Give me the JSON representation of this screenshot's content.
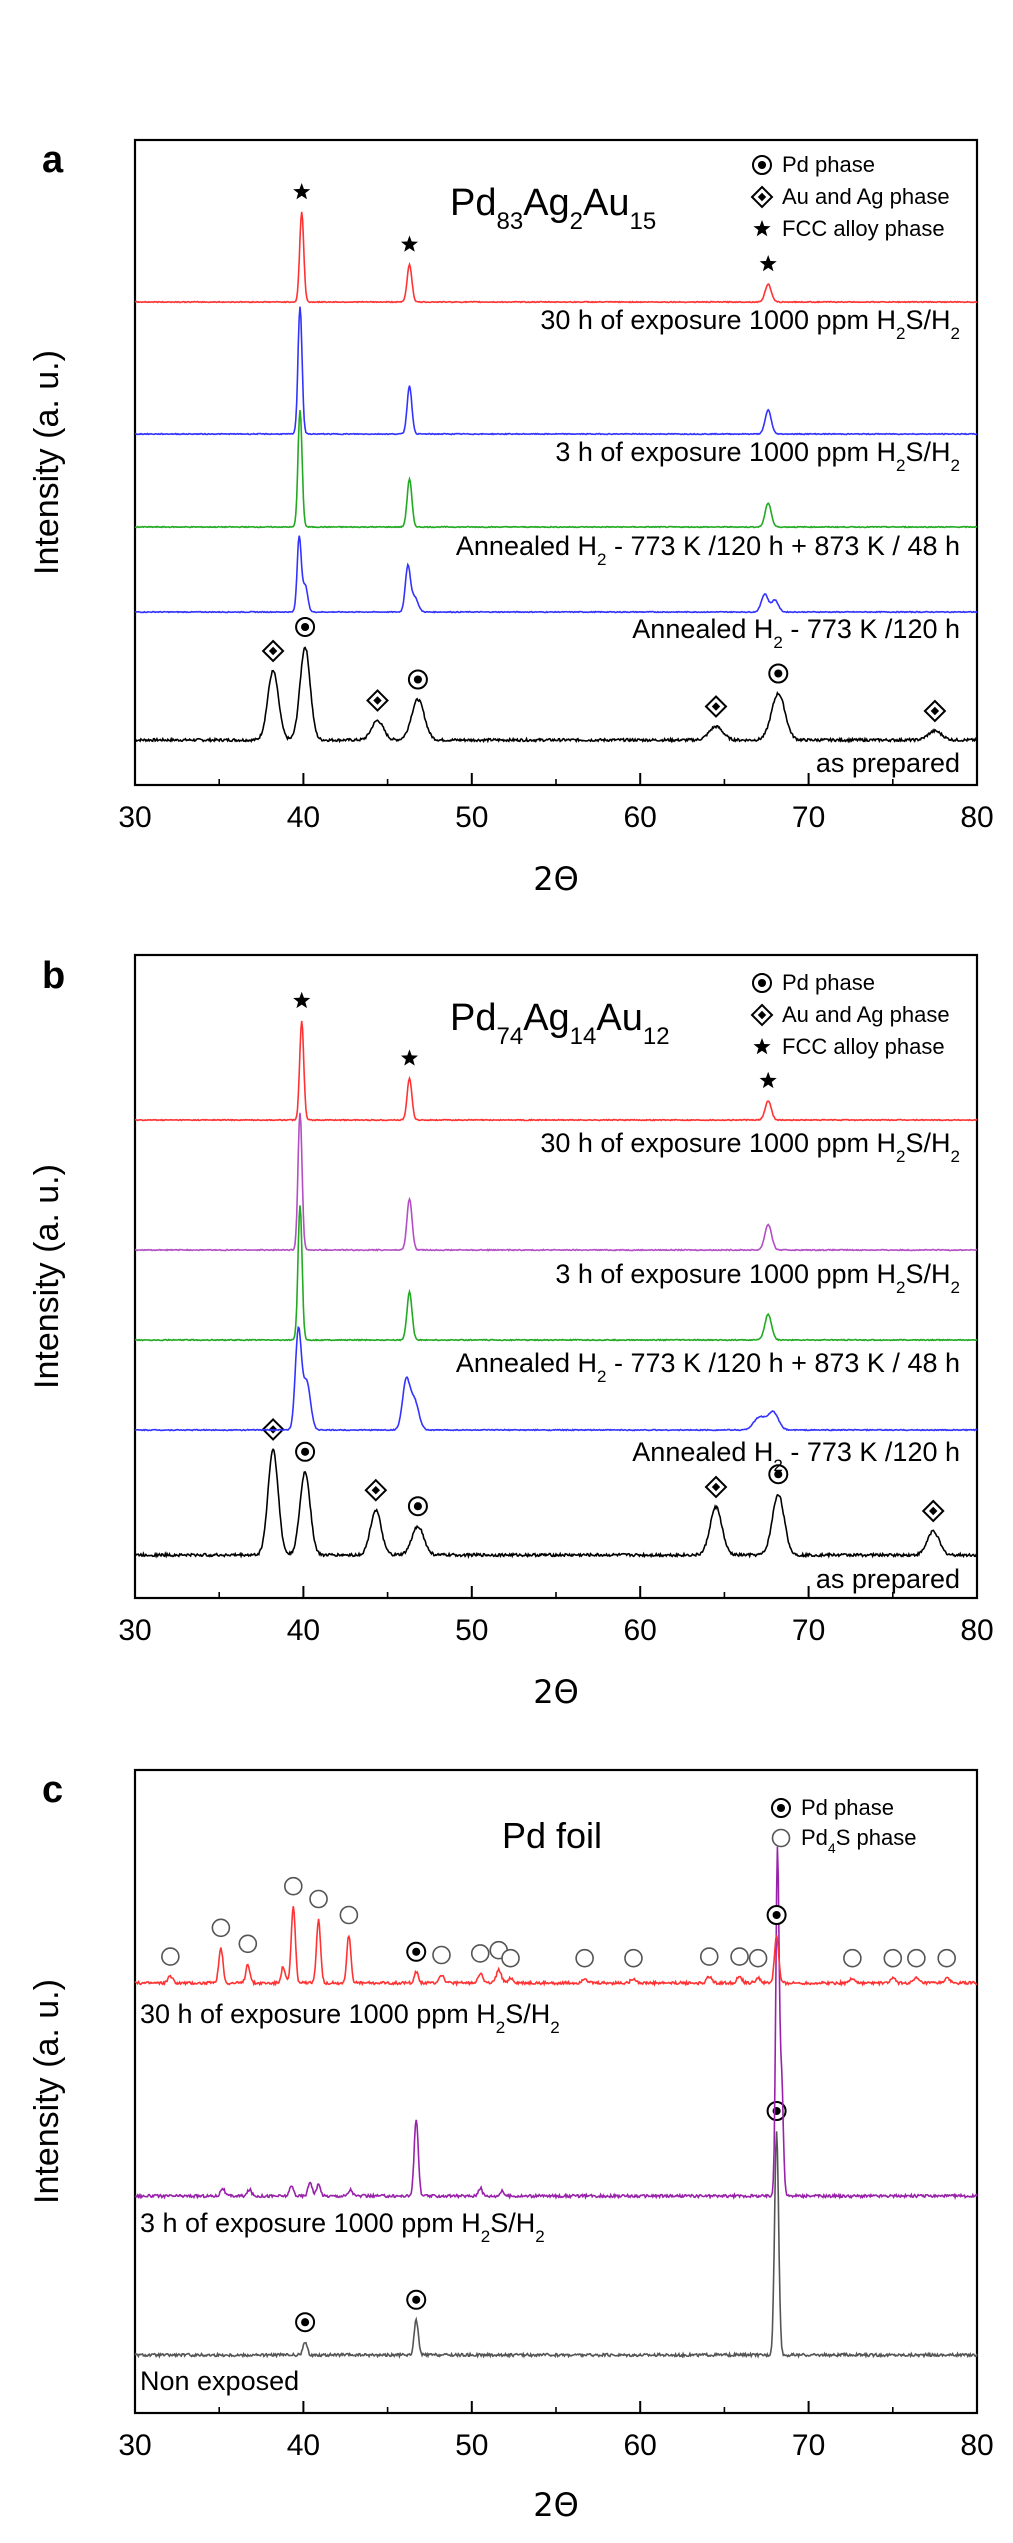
{
  "chart_data": [
    {
      "panel": "a",
      "type": "line",
      "title_parts": {
        "base": "Pd",
        "sub1": "83",
        "el2": "Ag",
        "sub2": "2",
        "el3": "Au",
        "sub3": "15"
      },
      "xlabel": "2Θ",
      "ylabel": "Intensity (a. u.)",
      "xlim": [
        30,
        80
      ],
      "xticks": [
        30,
        40,
        50,
        60,
        70,
        80
      ],
      "grid": false,
      "legend": [
        {
          "marker": "circle-dot",
          "label": "Pd phase"
        },
        {
          "marker": "diamond-dot",
          "label": "Au and Ag phase"
        },
        {
          "marker": "star",
          "label": "FCC alloy phase"
        }
      ],
      "series": [
        {
          "name": "as prepared",
          "color": "#000000",
          "label_parts": [
            "as prepared"
          ],
          "peaks": [
            {
              "x": 38.2,
              "h": 0.46,
              "w": 0.32,
              "marker": "diamond"
            },
            {
              "x": 40.1,
              "h": 0.62,
              "w": 0.3,
              "marker": "circle"
            },
            {
              "x": 44.4,
              "h": 0.13,
              "w": 0.35,
              "marker": "diamond"
            },
            {
              "x": 46.8,
              "h": 0.27,
              "w": 0.38,
              "marker": "circle"
            },
            {
              "x": 64.5,
              "h": 0.09,
              "w": 0.4,
              "marker": "diamond"
            },
            {
              "x": 68.2,
              "h": 0.31,
              "w": 0.4,
              "marker": "circle"
            },
            {
              "x": 77.5,
              "h": 0.06,
              "w": 0.4,
              "marker": "diamond"
            }
          ]
        },
        {
          "name": "Annealed H2 - 773 K /120 h",
          "color": "#3333ff",
          "label_parts": [
            "Annealed H",
            "2",
            " - 773 K /120 h"
          ],
          "peaks": [
            {
              "x": 39.75,
              "h": 0.5,
              "w": 0.12
            },
            {
              "x": 40.1,
              "h": 0.18,
              "w": 0.15
            },
            {
              "x": 46.2,
              "h": 0.3,
              "w": 0.15
            },
            {
              "x": 46.6,
              "h": 0.1,
              "w": 0.2
            },
            {
              "x": 67.4,
              "h": 0.12,
              "w": 0.2
            },
            {
              "x": 68.0,
              "h": 0.08,
              "w": 0.2
            }
          ]
        },
        {
          "name": "Annealed H2 - 773 K /120 h + 873 K / 48 h",
          "color": "#22aa22",
          "label_parts": [
            "Annealed H",
            "2",
            " - 773 K /120 h + 873 K / 48 h"
          ],
          "peaks": [
            {
              "x": 39.8,
              "h": 0.78,
              "w": 0.12
            },
            {
              "x": 46.3,
              "h": 0.32,
              "w": 0.14
            },
            {
              "x": 67.6,
              "h": 0.16,
              "w": 0.18
            }
          ]
        },
        {
          "name": "3 h of exposure 1000 ppm H2S/H2",
          "color": "#3333ff",
          "label_parts": [
            "3 h of exposure 1000 ppm H",
            "2",
            "S/H",
            "2"
          ],
          "peaks": [
            {
              "x": 39.8,
              "h": 0.85,
              "w": 0.12
            },
            {
              "x": 46.3,
              "h": 0.32,
              "w": 0.14
            },
            {
              "x": 67.6,
              "h": 0.16,
              "w": 0.18
            }
          ]
        },
        {
          "name": "30 h of exposure 1000 ppm H2S/H2",
          "color": "#ff3333",
          "label_parts": [
            "30 h of exposure 1000 ppm H",
            "2",
            "S/H",
            "2"
          ],
          "peaks": [
            {
              "x": 39.9,
              "h": 0.6,
              "w": 0.12,
              "marker": "star"
            },
            {
              "x": 46.3,
              "h": 0.25,
              "w": 0.14,
              "marker": "star"
            },
            {
              "x": 67.6,
              "h": 0.12,
              "w": 0.18,
              "marker": "star"
            }
          ]
        }
      ]
    },
    {
      "panel": "b",
      "type": "line",
      "title_parts": {
        "base": "Pd",
        "sub1": "74",
        "el2": "Ag",
        "sub2": "14",
        "el3": "Au",
        "sub3": "12"
      },
      "xlabel": "2Θ",
      "ylabel": "Intensity (a. u.)",
      "xlim": [
        30,
        80
      ],
      "xticks": [
        30,
        40,
        50,
        60,
        70,
        80
      ],
      "grid": false,
      "legend": [
        {
          "marker": "circle-dot",
          "label": "Pd phase"
        },
        {
          "marker": "diamond-dot",
          "label": "Au and Ag phase"
        },
        {
          "marker": "star",
          "label": "FCC alloy phase"
        }
      ],
      "series": [
        {
          "name": "as prepared",
          "color": "#000000",
          "label_parts": [
            "as prepared"
          ],
          "peaks": [
            {
              "x": 38.2,
              "h": 0.66,
              "w": 0.3,
              "marker": "diamond"
            },
            {
              "x": 40.1,
              "h": 0.52,
              "w": 0.3,
              "marker": "circle"
            },
            {
              "x": 44.3,
              "h": 0.28,
              "w": 0.32,
              "marker": "diamond"
            },
            {
              "x": 46.8,
              "h": 0.18,
              "w": 0.35,
              "marker": "circle"
            },
            {
              "x": 64.5,
              "h": 0.3,
              "w": 0.35,
              "marker": "diamond"
            },
            {
              "x": 68.2,
              "h": 0.38,
              "w": 0.35,
              "marker": "circle"
            },
            {
              "x": 77.4,
              "h": 0.15,
              "w": 0.35,
              "marker": "diamond"
            }
          ]
        },
        {
          "name": "Annealed H2 - 773 K /120 h",
          "color": "#3333ff",
          "label_parts": [
            "Annealed H",
            "2",
            " - 773 K /120 h"
          ],
          "peaks": [
            {
              "x": 39.7,
              "h": 0.62,
              "w": 0.18
            },
            {
              "x": 40.2,
              "h": 0.3,
              "w": 0.22
            },
            {
              "x": 46.1,
              "h": 0.3,
              "w": 0.22
            },
            {
              "x": 46.6,
              "h": 0.18,
              "w": 0.25
            },
            {
              "x": 67.1,
              "h": 0.08,
              "w": 0.35
            },
            {
              "x": 67.9,
              "h": 0.11,
              "w": 0.3
            }
          ]
        },
        {
          "name": "Annealed H2 - 773 K /120 h + 873 K / 48 h",
          "color": "#22aa22",
          "label_parts": [
            "Annealed H",
            "2",
            " - 773 K /120 h + 873 K / 48 h"
          ],
          "peaks": [
            {
              "x": 39.8,
              "h": 0.84,
              "w": 0.12
            },
            {
              "x": 46.3,
              "h": 0.3,
              "w": 0.15
            },
            {
              "x": 67.6,
              "h": 0.16,
              "w": 0.2
            }
          ]
        },
        {
          "name": "3 h of exposure 1000 ppm H2S/H2",
          "color": "#b34fc4",
          "label_parts": [
            "3 h of exposure 1000 ppm H",
            "2",
            "S/H",
            "2"
          ],
          "peaks": [
            {
              "x": 39.8,
              "h": 0.86,
              "w": 0.12
            },
            {
              "x": 46.3,
              "h": 0.32,
              "w": 0.15
            },
            {
              "x": 67.6,
              "h": 0.16,
              "w": 0.2
            }
          ]
        },
        {
          "name": "30 h of exposure 1000 ppm H2S/H2",
          "color": "#ff3333",
          "label_parts": [
            "30 h of exposure 1000 ppm H",
            "2",
            "S/H",
            "2"
          ],
          "peaks": [
            {
              "x": 39.9,
              "h": 0.62,
              "w": 0.12,
              "marker": "star"
            },
            {
              "x": 46.3,
              "h": 0.26,
              "w": 0.14,
              "marker": "star"
            },
            {
              "x": 67.6,
              "h": 0.12,
              "w": 0.18,
              "marker": "star"
            }
          ]
        }
      ]
    },
    {
      "panel": "c",
      "type": "line",
      "title": "Pd foil",
      "xlabel": "2Θ",
      "ylabel": "Intensity (a. u.)",
      "xlim": [
        30,
        80
      ],
      "xticks": [
        30,
        40,
        50,
        60,
        70,
        80
      ],
      "grid": false,
      "legend": [
        {
          "marker": "circle-dot",
          "label_parts": [
            "Pd phase"
          ]
        },
        {
          "marker": "open-circle",
          "label_parts": [
            "Pd",
            "4",
            "S phase"
          ]
        }
      ],
      "series": [
        {
          "name": "Non exposed",
          "color": "#555555",
          "label_parts": [
            "Non exposed"
          ],
          "peaks": [
            {
              "x": 40.1,
              "h": 0.08,
              "w": 0.12,
              "marker": "circle"
            },
            {
              "x": 46.7,
              "h": 0.22,
              "w": 0.12,
              "marker": "circle"
            },
            {
              "x": 68.1,
              "h": 1.4,
              "w": 0.12,
              "marker": "circle"
            }
          ]
        },
        {
          "name": "3 h of exposure 1000 ppm H2S/H2",
          "color": "#9922aa",
          "label_parts": [
            "3 h of exposure 1000 ppm H",
            "2",
            "S/H",
            "2"
          ],
          "peaks": [
            {
              "x": 35.2,
              "h": 0.05,
              "w": 0.12
            },
            {
              "x": 36.8,
              "h": 0.04,
              "w": 0.12
            },
            {
              "x": 39.3,
              "h": 0.06,
              "w": 0.12
            },
            {
              "x": 40.4,
              "h": 0.09,
              "w": 0.12
            },
            {
              "x": 40.9,
              "h": 0.07,
              "w": 0.12
            },
            {
              "x": 42.8,
              "h": 0.04,
              "w": 0.12
            },
            {
              "x": 46.7,
              "h": 0.48,
              "w": 0.12
            },
            {
              "x": 50.5,
              "h": 0.05,
              "w": 0.12
            },
            {
              "x": 51.8,
              "h": 0.03,
              "w": 0.12
            },
            {
              "x": 68.15,
              "h": 2.15,
              "w": 0.1
            },
            {
              "x": 68.4,
              "h": 0.7,
              "w": 0.1
            }
          ]
        },
        {
          "name": "30 h of exposure 1000 ppm H2S/H2",
          "color": "#ff3333",
          "label_parts": [
            "30 h of exposure 1000 ppm H",
            "2",
            "S/H",
            "2"
          ],
          "peaks": [
            {
              "x": 32.1,
              "h": 0.04,
              "w": 0.15,
              "marker": "open"
            },
            {
              "x": 35.1,
              "h": 0.22,
              "w": 0.12,
              "marker": "open"
            },
            {
              "x": 36.7,
              "h": 0.12,
              "w": 0.12,
              "marker": "open"
            },
            {
              "x": 38.8,
              "h": 0.1,
              "w": 0.12
            },
            {
              "x": 39.4,
              "h": 0.48,
              "w": 0.12,
              "marker": "open"
            },
            {
              "x": 40.9,
              "h": 0.4,
              "w": 0.12,
              "marker": "open"
            },
            {
              "x": 42.7,
              "h": 0.3,
              "w": 0.12,
              "marker": "open"
            },
            {
              "x": 46.7,
              "h": 0.07,
              "w": 0.12,
              "marker": "circle"
            },
            {
              "x": 48.2,
              "h": 0.05,
              "w": 0.15,
              "marker": "open"
            },
            {
              "x": 50.5,
              "h": 0.06,
              "w": 0.15,
              "marker": "open"
            },
            {
              "x": 51.6,
              "h": 0.08,
              "w": 0.15,
              "marker": "open"
            },
            {
              "x": 52.3,
              "h": 0.03,
              "w": 0.15,
              "marker": "open"
            },
            {
              "x": 56.7,
              "h": 0.03,
              "w": 0.15,
              "marker": "open"
            },
            {
              "x": 59.6,
              "h": 0.03,
              "w": 0.15,
              "marker": "open"
            },
            {
              "x": 64.1,
              "h": 0.04,
              "w": 0.15,
              "marker": "open"
            },
            {
              "x": 65.9,
              "h": 0.04,
              "w": 0.15,
              "marker": "open"
            },
            {
              "x": 67.0,
              "h": 0.03,
              "w": 0.15,
              "marker": "open"
            },
            {
              "x": 68.1,
              "h": 0.3,
              "w": 0.12,
              "marker": "circle"
            },
            {
              "x": 72.6,
              "h": 0.03,
              "w": 0.15,
              "marker": "open"
            },
            {
              "x": 75.0,
              "h": 0.03,
              "w": 0.15,
              "marker": "open"
            },
            {
              "x": 76.4,
              "h": 0.03,
              "w": 0.15,
              "marker": "open"
            },
            {
              "x": 78.2,
              "h": 0.03,
              "w": 0.15,
              "marker": "open"
            }
          ]
        }
      ]
    }
  ]
}
